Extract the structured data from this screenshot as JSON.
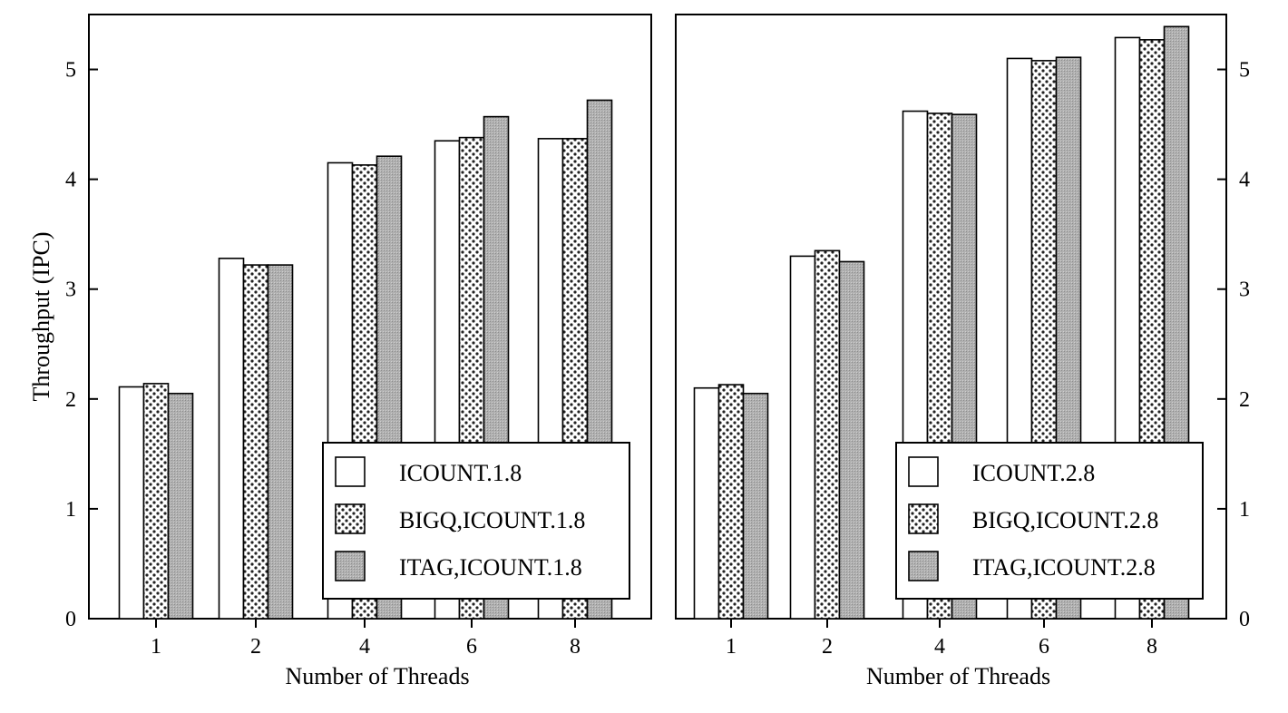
{
  "colors": {
    "plain": "#ffffff",
    "dotted_bg": "#ffffff",
    "dotted_dot": "#222222",
    "shaded": "#a8a8a8",
    "frame": "#000000"
  },
  "chart_data": [
    {
      "type": "bar",
      "categories": [
        "1",
        "2",
        "4",
        "6",
        "8"
      ],
      "xlabel": "Number of Threads",
      "ylabel": "Throughput (IPC)",
      "ylim": [
        0,
        5.5
      ],
      "yticks": [
        "0",
        "1",
        "2",
        "3",
        "4",
        "5"
      ],
      "y_axis_side": "left",
      "legend_position": "bottom-right",
      "series": [
        {
          "name": "ICOUNT.1.8",
          "pattern": "plain",
          "values": [
            2.11,
            3.28,
            4.15,
            4.35,
            4.37
          ]
        },
        {
          "name": "BIGQ,ICOUNT.1.8",
          "pattern": "dotted",
          "values": [
            2.14,
            3.22,
            4.13,
            4.38,
            4.37
          ]
        },
        {
          "name": "ITAG,ICOUNT.1.8",
          "pattern": "shaded",
          "values": [
            2.05,
            3.22,
            4.21,
            4.57,
            4.72
          ]
        }
      ]
    },
    {
      "type": "bar",
      "categories": [
        "1",
        "2",
        "4",
        "6",
        "8"
      ],
      "xlabel": "Number of Threads",
      "ylabel": "",
      "ylim": [
        0,
        5.5
      ],
      "yticks": [
        "0",
        "1",
        "2",
        "3",
        "4",
        "5"
      ],
      "y_axis_side": "right",
      "legend_position": "bottom-right",
      "series": [
        {
          "name": "ICOUNT.2.8",
          "pattern": "plain",
          "values": [
            2.1,
            3.3,
            4.62,
            5.1,
            5.29
          ]
        },
        {
          "name": "BIGQ,ICOUNT.2.8",
          "pattern": "dotted",
          "values": [
            2.13,
            3.35,
            4.6,
            5.08,
            5.27
          ]
        },
        {
          "name": "ITAG,ICOUNT.2.8",
          "pattern": "shaded",
          "values": [
            2.05,
            3.25,
            4.59,
            5.11,
            5.39
          ]
        }
      ]
    }
  ]
}
